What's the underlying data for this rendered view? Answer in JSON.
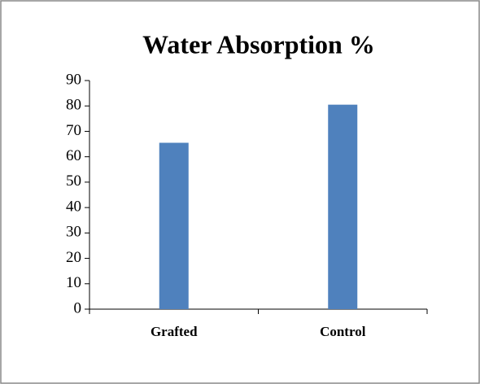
{
  "chart_data": {
    "type": "bar",
    "title": "Water Absorption %",
    "categories": [
      "Grafted",
      "Control"
    ],
    "values": [
      65.5,
      80.5
    ],
    "color": "#4f81bd",
    "ylim": [
      0,
      90
    ],
    "yticks": [
      0,
      10,
      20,
      30,
      40,
      50,
      60,
      70,
      80,
      90
    ],
    "grid": false
  }
}
